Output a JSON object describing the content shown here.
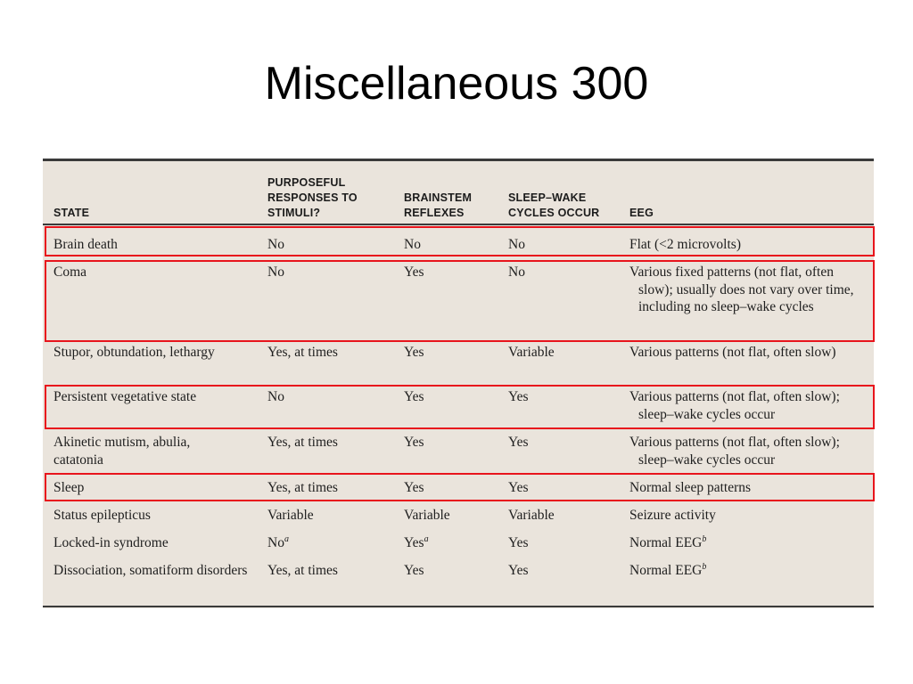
{
  "slide": {
    "title": "Miscellaneous 300"
  },
  "table": {
    "headers": {
      "state": "STATE",
      "purposeful": [
        "PURPOSEFUL",
        "RESPONSES TO",
        "STIMULI?"
      ],
      "brainstem": [
        "BRAINSTEM",
        "REFLEXES"
      ],
      "sleep_wake": [
        "SLEEP–WAKE",
        "CYCLES OCCUR"
      ],
      "eeg": "EEG"
    },
    "rows": [
      {
        "state": "Brain death",
        "purposeful": "No",
        "brainstem": "No",
        "sleep_wake": "No",
        "eeg": "Flat (<2 microvolts)",
        "highlighted": true
      },
      {
        "state": "Coma",
        "purposeful": "No",
        "brainstem": "Yes",
        "sleep_wake": "No",
        "eeg": "Various fixed patterns (not flat, often slow); usually does not vary over time, including no sleep–wake cycles",
        "highlighted": true
      },
      {
        "state": "Stupor, obtundation, lethargy",
        "purposeful": "Yes, at times",
        "brainstem": "Yes",
        "sleep_wake": "Variable",
        "eeg": "Various patterns (not flat, often slow)",
        "highlighted": false
      },
      {
        "state": "Persistent vegetative state",
        "purposeful": "No",
        "brainstem": "Yes",
        "sleep_wake": "Yes",
        "eeg": "Various patterns (not flat, often slow); sleep–wake cycles occur",
        "highlighted": true
      },
      {
        "state": "Akinetic mutism, abulia, catatonia",
        "purposeful": "Yes, at times",
        "brainstem": "Yes",
        "sleep_wake": "Yes",
        "eeg": "Various patterns (not flat, often slow); sleep–wake cycles occur",
        "highlighted": false
      },
      {
        "state": "Sleep",
        "purposeful": "Yes, at times",
        "brainstem": "Yes",
        "sleep_wake": "Yes",
        "eeg": "Normal sleep patterns",
        "highlighted": true
      },
      {
        "state": "Status epilepticus",
        "purposeful": "Variable",
        "brainstem": "Variable",
        "sleep_wake": "Variable",
        "eeg": "Seizure activity",
        "highlighted": false
      },
      {
        "state": "Locked-in syndrome",
        "purposeful": "No",
        "purposeful_note": "a",
        "brainstem": "Yes",
        "brainstem_note": "a",
        "sleep_wake": "Yes",
        "eeg": "Normal EEG",
        "eeg_note": "b",
        "highlighted": false
      },
      {
        "state": "Dissociation, somatiform disorders",
        "purposeful": "Yes, at times",
        "brainstem": "Yes",
        "sleep_wake": "Yes",
        "eeg": "Normal EEG",
        "eeg_note": "b",
        "highlighted": false
      }
    ]
  },
  "colors": {
    "highlight": "#e8141c",
    "panel_background": "#eae4dc"
  }
}
